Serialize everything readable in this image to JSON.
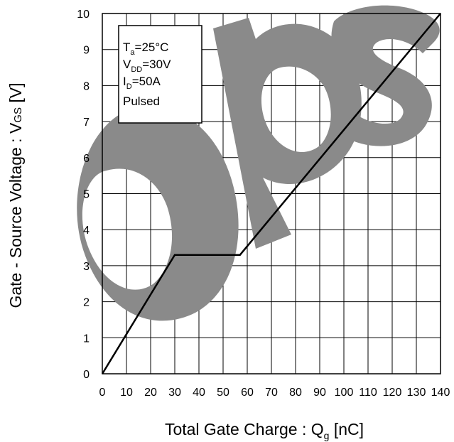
{
  "chart_data": {
    "type": "line",
    "xlabel": {
      "main": "Total Gate Charge : Q",
      "sub": "g",
      "unit": " [nC]"
    },
    "ylabel": {
      "main": "Gate - Source Voltage : V",
      "sub": "GS",
      "unit": " [V]"
    },
    "xlim": [
      0,
      140
    ],
    "ylim": [
      0,
      10
    ],
    "x_ticks": [
      "0",
      "10",
      "20",
      "30",
      "40",
      "50",
      "60",
      "70",
      "80",
      "90",
      "100",
      "110",
      "120",
      "130",
      "140"
    ],
    "y_ticks": [
      "0",
      "1",
      "2",
      "3",
      "4",
      "5",
      "6",
      "7",
      "8",
      "9",
      "10"
    ],
    "grid": true,
    "series": [
      {
        "x": [
          0,
          30,
          57,
          140
        ],
        "y": [
          0,
          3.3,
          3.3,
          10
        ]
      }
    ],
    "legend_box": {
      "position": "top-left",
      "lines": [
        {
          "main": "T",
          "sub": "a",
          "rest": "=25°C"
        },
        {
          "main": "V",
          "sub": "DD",
          "rest": "=30V"
        },
        {
          "main": "I",
          "sub": "D",
          "rest": "=50A"
        },
        {
          "main": "Pulsed",
          "sub": "",
          "rest": ""
        }
      ]
    },
    "watermark": "ops"
  }
}
